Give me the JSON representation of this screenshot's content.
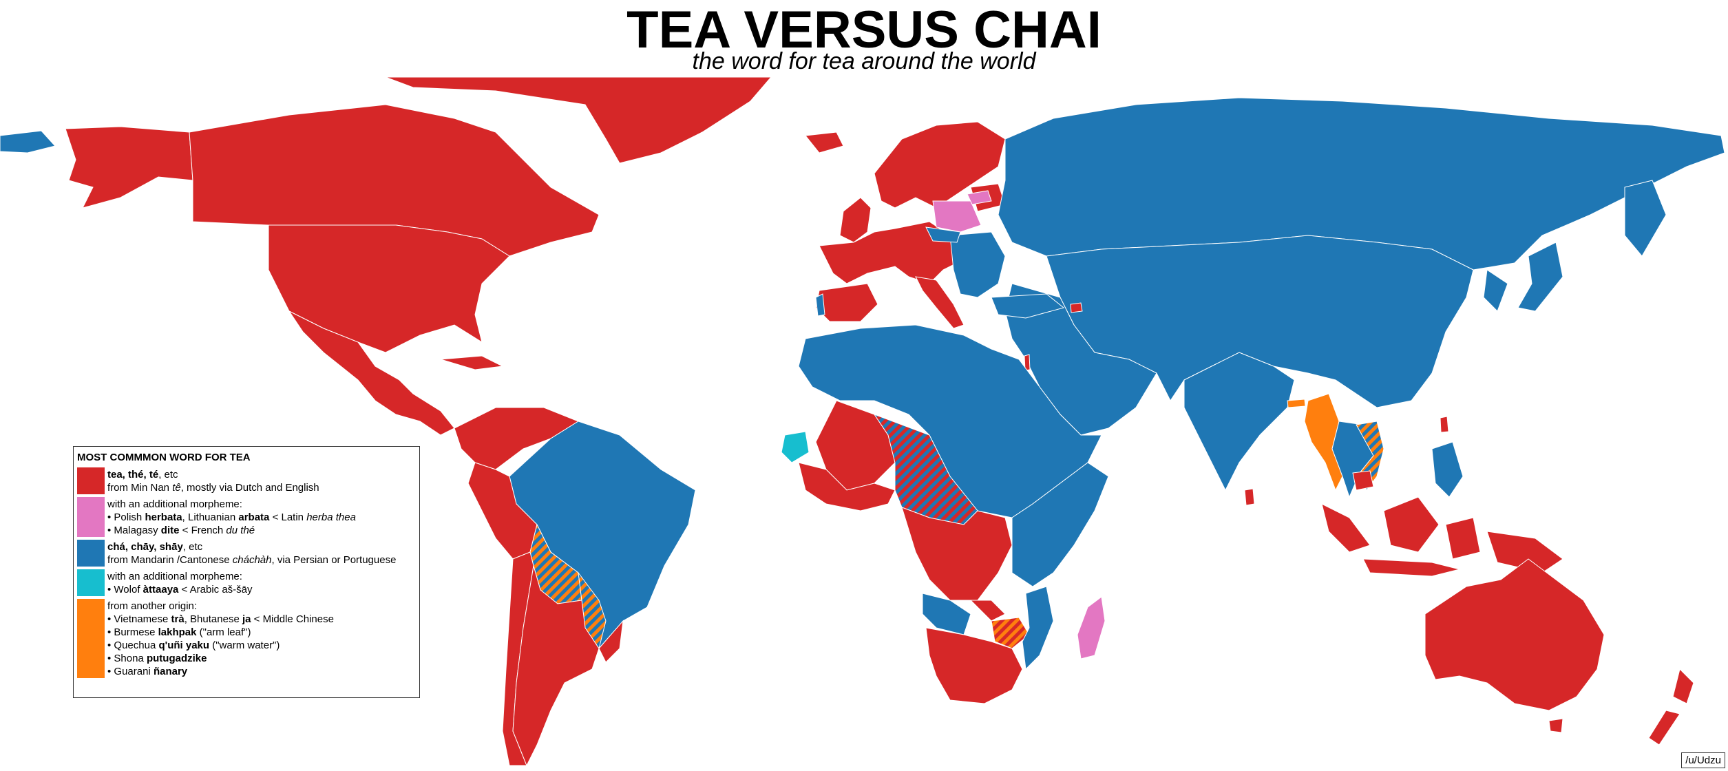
{
  "title": "TEA VERSUS CHAI",
  "subtitle": "the word for tea around the world",
  "colors": {
    "tea": "#d62728",
    "tea_morpheme": "#e377c2",
    "cha": "#1f77b4",
    "cha_morpheme": "#17becf",
    "other": "#ff7f0e",
    "background": "#ffffff"
  },
  "legend": {
    "title": "MOST COMMMON WORD FOR TEA",
    "entries": [
      {
        "color_key": "tea",
        "lines": [
          {
            "bold": "tea, thé, té",
            "rest": ", etc"
          },
          {
            "pre": "from Min Nan ",
            "italic": "tê",
            "rest": ", mostly via Dutch and English"
          }
        ]
      },
      {
        "color_key": "tea_morpheme",
        "lines": [
          {
            "rest": "with an additional morpheme:"
          },
          {
            "pre": "• Polish ",
            "bold": "herbata",
            "mid": ", Lithuanian ",
            "bold2": "arbata",
            "mid2": " < Latin ",
            "italic": "herba thea"
          },
          {
            "pre": "• Malagasy ",
            "bold": "dite",
            "mid": " < French ",
            "italic": "du thé"
          }
        ]
      },
      {
        "color_key": "cha",
        "lines": [
          {
            "bold": "chá, chāy, shāy",
            "rest": ", etc"
          },
          {
            "pre": "from Mandarin ",
            "italic": "chá",
            "mid": "/Cantonese  ",
            "italic2": "chàh",
            "rest": ", via Persian or Portuguese"
          }
        ]
      },
      {
        "color_key": "cha_morpheme",
        "lines": [
          {
            "rest": "with an additional morpheme:"
          },
          {
            "pre": "• Wolof ",
            "bold": "àttaaya",
            "rest": " < Arabic aš-šāy"
          }
        ]
      },
      {
        "color_key": "other",
        "lines": [
          {
            "rest": "from another origin:"
          },
          {
            "pre": "• Vietnamese ",
            "bold": "trà",
            "mid": ", Bhutanese ",
            "bold2": "ja",
            "rest": " < Middle Chinese"
          },
          {
            "pre": "• Burmese ",
            "bold": "lakhpak",
            "rest": " (\"arm leaf\")"
          },
          {
            "pre": "• Quechua ",
            "bold": "q'uñi yaku",
            "rest": " (\"warm water\")"
          },
          {
            "pre": "• Shona ",
            "bold": "putugadzike"
          },
          {
            "pre": "• Guarani ",
            "bold": "ñanary"
          }
        ]
      }
    ]
  },
  "credit": "/u/Udzu"
}
